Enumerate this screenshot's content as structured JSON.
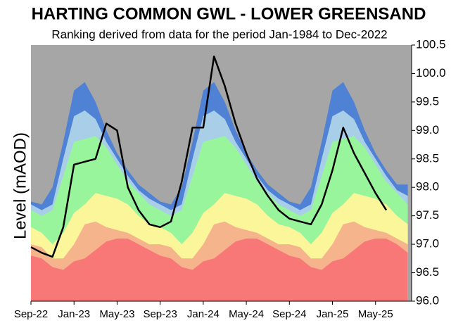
{
  "chart_data": {
    "type": "area",
    "title": "HARTING COMMON GWL - LOWER GREENSAND",
    "subtitle": "Ranking derived from data for the period Jan-1984 to Dec-2022",
    "y_label": "Level (mAOD)",
    "background_color": "#a6a6a6",
    "x": [
      0,
      1,
      2,
      3,
      4,
      5,
      6,
      7,
      8,
      9,
      10,
      11,
      12,
      13,
      14,
      15,
      16,
      17,
      18,
      19,
      20,
      21,
      22,
      23,
      24,
      25,
      26,
      27,
      28,
      29,
      30,
      31,
      32,
      33,
      34,
      35
    ],
    "xlim": [
      0,
      35.35
    ],
    "xticks": [
      {
        "value": 0,
        "label": "Sep-22"
      },
      {
        "value": 4,
        "label": "Jan-23"
      },
      {
        "value": 8,
        "label": "May-23"
      },
      {
        "value": 12,
        "label": "Sep-23"
      },
      {
        "value": 16,
        "label": "Jan-24"
      },
      {
        "value": 20,
        "label": "May-24"
      },
      {
        "value": 24,
        "label": "Sep-24"
      },
      {
        "value": 28,
        "label": "Jan-25"
      },
      {
        "value": 32,
        "label": "May-25"
      }
    ],
    "ylim": [
      96.0,
      100.5
    ],
    "yticks": [
      {
        "value": 96.0,
        "label": "96.0"
      },
      96.5,
      {
        "value": 97.0,
        "label": "97.0"
      },
      97.5,
      {
        "value": 98.0,
        "label": "98.0"
      },
      98.5,
      {
        "value": 99.0,
        "label": "99.0"
      },
      99.5,
      {
        "value": 100.0,
        "label": "100.0"
      },
      100.5
    ],
    "series": [
      {
        "color": "#4f81d4",
        "values": [
          97.75,
          97.7,
          98.0,
          98.8,
          99.7,
          99.85,
          99.5,
          99.0,
          98.6,
          98.3,
          98.05,
          97.9,
          97.75,
          97.7,
          98.0,
          98.8,
          99.7,
          99.85,
          99.5,
          99.0,
          98.6,
          98.3,
          98.05,
          97.9,
          97.75,
          97.7,
          98.0,
          98.8,
          99.7,
          99.85,
          99.5,
          99.0,
          98.6,
          98.3,
          98.05,
          98.05
        ]
      },
      {
        "color": "#a9cfe8",
        "values": [
          97.7,
          97.6,
          97.7,
          98.5,
          99.25,
          99.35,
          99.2,
          98.8,
          98.5,
          98.2,
          97.95,
          97.8,
          97.7,
          97.6,
          97.7,
          98.5,
          99.25,
          99.35,
          99.2,
          98.8,
          98.5,
          98.2,
          97.95,
          97.8,
          97.7,
          97.6,
          97.7,
          98.5,
          99.25,
          99.35,
          99.2,
          98.8,
          98.5,
          98.2,
          97.95,
          97.85
        ]
      },
      {
        "color": "#99f59b",
        "values": [
          97.6,
          97.5,
          97.6,
          98.2,
          98.8,
          98.85,
          98.9,
          98.7,
          98.4,
          98.1,
          97.9,
          97.7,
          97.6,
          97.5,
          97.6,
          98.2,
          98.8,
          98.85,
          98.9,
          98.7,
          98.4,
          98.1,
          97.9,
          97.7,
          97.6,
          97.5,
          97.6,
          98.2,
          98.8,
          98.85,
          98.9,
          98.7,
          98.4,
          98.1,
          97.9,
          97.7
        ]
      },
      {
        "color": "#fbf69a",
        "values": [
          97.3,
          97.2,
          97.0,
          97.2,
          97.55,
          97.7,
          97.9,
          97.85,
          97.8,
          97.7,
          97.5,
          97.35,
          97.3,
          97.2,
          97.0,
          97.2,
          97.55,
          97.7,
          97.9,
          97.85,
          97.8,
          97.7,
          97.5,
          97.35,
          97.3,
          97.2,
          97.0,
          97.2,
          97.55,
          97.7,
          97.9,
          97.85,
          97.8,
          97.7,
          97.5,
          97.35
        ]
      },
      {
        "color": "#f6b48c",
        "values": [
          97.0,
          96.95,
          96.75,
          96.75,
          97.0,
          97.35,
          97.4,
          97.3,
          97.25,
          97.2,
          97.1,
          97.0,
          97.0,
          96.95,
          96.75,
          96.75,
          97.0,
          97.35,
          97.4,
          97.3,
          97.25,
          97.2,
          97.1,
          97.0,
          97.0,
          96.95,
          96.75,
          96.75,
          97.0,
          97.35,
          97.4,
          97.3,
          97.25,
          97.2,
          97.1,
          97.0
        ]
      },
      {
        "color": "#f87878",
        "values": [
          96.8,
          96.75,
          96.6,
          96.55,
          96.7,
          96.75,
          96.9,
          97.05,
          97.1,
          97.1,
          97.0,
          96.9,
          96.8,
          96.75,
          96.6,
          96.55,
          96.7,
          96.75,
          96.9,
          97.05,
          97.1,
          97.1,
          97.0,
          96.9,
          96.8,
          96.75,
          96.6,
          96.55,
          96.7,
          96.75,
          96.9,
          97.05,
          97.1,
          97.1,
          97.0,
          96.85
        ]
      },
      {
        "type": "line",
        "color": "#000000",
        "values": [
          96.95,
          96.85,
          96.78,
          97.3,
          98.4,
          98.45,
          98.5,
          99.12,
          99.0,
          98.0,
          97.6,
          97.35,
          97.3,
          97.4,
          98.1,
          99.05,
          99.05,
          100.3,
          99.78,
          99.12,
          98.6,
          98.15,
          97.85,
          97.6,
          97.45,
          97.4,
          97.35,
          97.7,
          98.3,
          99.05,
          98.6,
          98.25,
          97.9,
          97.6,
          null,
          null
        ]
      }
    ]
  }
}
